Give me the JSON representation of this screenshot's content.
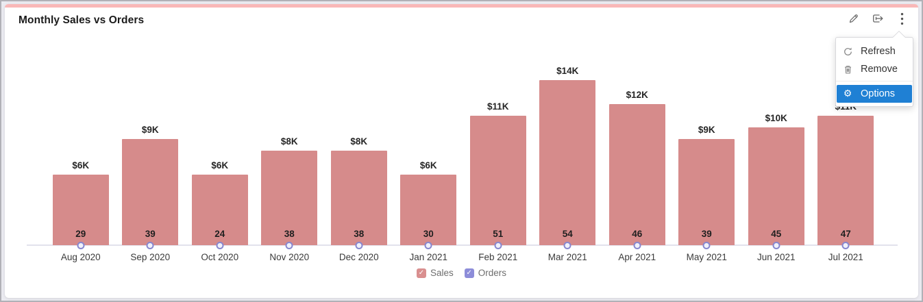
{
  "widget": {
    "title": "Monthly Sales vs Orders"
  },
  "toolbar": {
    "icons": [
      {
        "name": "edit-icon"
      },
      {
        "name": "export-icon"
      },
      {
        "name": "more-menu-icon"
      }
    ]
  },
  "menu": {
    "items": [
      {
        "label": "Refresh",
        "icon": "refresh-icon",
        "active": false
      },
      {
        "label": "Remove",
        "icon": "trash-icon",
        "active": false
      },
      {
        "label": "Options",
        "icon": "gear-icon",
        "active": true
      }
    ]
  },
  "legend": {
    "items": [
      {
        "label": "Sales",
        "color": "#d98f8f",
        "checked": true
      },
      {
        "label": "Orders",
        "color": "#8d8dd9",
        "checked": true
      }
    ]
  },
  "chart_data": {
    "type": "bar",
    "title": "Monthly Sales vs Orders",
    "categories": [
      "Aug 2020",
      "Sep 2020",
      "Oct 2020",
      "Nov 2020",
      "Dec 2020",
      "Jan 2021",
      "Feb 2021",
      "Mar 2021",
      "Apr 2021",
      "May 2021",
      "Jun 2021",
      "Jul 2021"
    ],
    "series": [
      {
        "name": "Sales",
        "type": "bar",
        "color": "#d68b8b",
        "values": [
          6000,
          9000,
          6000,
          8000,
          8000,
          6000,
          11000,
          14000,
          12000,
          9000,
          10000,
          11000
        ],
        "labels": [
          "$6K",
          "$9K",
          "$6K",
          "$8K",
          "$8K",
          "$6K",
          "$11K",
          "$14K",
          "$12K",
          "$9K",
          "$10K",
          "$11K"
        ]
      },
      {
        "name": "Orders",
        "type": "line-marker",
        "color": "#8787cf",
        "values": [
          29,
          39,
          24,
          38,
          38,
          30,
          51,
          54,
          46,
          39,
          45,
          47
        ]
      }
    ],
    "ylim": [
      0,
      15000
    ],
    "xlabel": "",
    "ylabel": "",
    "grid": false,
    "legend_position": "bottom",
    "value_labels_visible": true
  },
  "colors": {
    "accent_strip": "#f9b8b8",
    "bar": "#d68b8b",
    "active_menu_bg": "#1f80d4",
    "axis_line": "#e2e2ec",
    "marker_ring": "#8787cf",
    "marker_fill": "#f0f1fb"
  }
}
